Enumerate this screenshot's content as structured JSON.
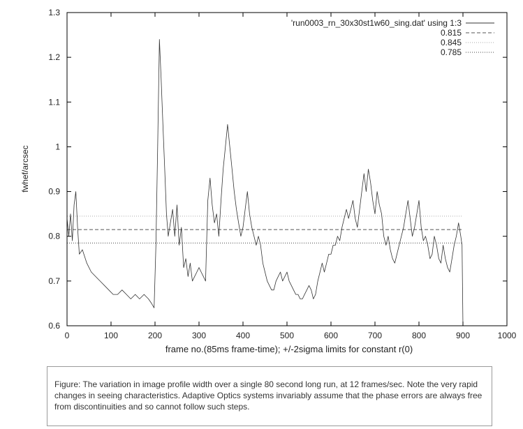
{
  "chart_data": {
    "type": "line",
    "title": "",
    "xlabel": "frame no.(85ms frame-time); +/-2sigma limits for constant r(0)",
    "ylabel": "fwhef/arcsec",
    "xlim": [
      0,
      1000
    ],
    "ylim": [
      0.6,
      1.3
    ],
    "xticks": [
      "0",
      "100",
      "200",
      "300",
      "400",
      "500",
      "600",
      "700",
      "800",
      "900",
      "1000"
    ],
    "yticks": [
      "0.6",
      "0.7",
      "0.8",
      "0.9",
      "1",
      "1.1",
      "1.2",
      "1.3"
    ],
    "grid": false,
    "legend_position": "top-right",
    "series": [
      {
        "name": "'run0003_rn_30x30st1w60_sing.dat' using 1:3",
        "style": "solid",
        "points": [
          [
            0,
            0.84
          ],
          [
            4,
            0.8
          ],
          [
            8,
            0.85
          ],
          [
            12,
            0.79
          ],
          [
            16,
            0.87
          ],
          [
            20,
            0.9
          ],
          [
            24,
            0.82
          ],
          [
            28,
            0.76
          ],
          [
            35,
            0.77
          ],
          [
            45,
            0.74
          ],
          [
            55,
            0.72
          ],
          [
            65,
            0.71
          ],
          [
            75,
            0.7
          ],
          [
            85,
            0.69
          ],
          [
            95,
            0.68
          ],
          [
            105,
            0.67
          ],
          [
            115,
            0.67
          ],
          [
            125,
            0.68
          ],
          [
            135,
            0.67
          ],
          [
            145,
            0.66
          ],
          [
            155,
            0.67
          ],
          [
            165,
            0.66
          ],
          [
            175,
            0.67
          ],
          [
            185,
            0.66
          ],
          [
            192,
            0.65
          ],
          [
            198,
            0.64
          ],
          [
            202,
            0.78
          ],
          [
            206,
            1.0
          ],
          [
            210,
            1.24
          ],
          [
            214,
            1.15
          ],
          [
            218,
            1.05
          ],
          [
            222,
            0.95
          ],
          [
            226,
            0.85
          ],
          [
            230,
            0.8
          ],
          [
            235,
            0.83
          ],
          [
            240,
            0.86
          ],
          [
            245,
            0.8
          ],
          [
            250,
            0.87
          ],
          [
            255,
            0.78
          ],
          [
            260,
            0.82
          ],
          [
            265,
            0.73
          ],
          [
            270,
            0.75
          ],
          [
            275,
            0.71
          ],
          [
            280,
            0.74
          ],
          [
            285,
            0.7
          ],
          [
            290,
            0.71
          ],
          [
            295,
            0.72
          ],
          [
            300,
            0.73
          ],
          [
            305,
            0.72
          ],
          [
            310,
            0.71
          ],
          [
            315,
            0.7
          ],
          [
            320,
            0.88
          ],
          [
            325,
            0.93
          ],
          [
            330,
            0.87
          ],
          [
            335,
            0.83
          ],
          [
            340,
            0.85
          ],
          [
            345,
            0.8
          ],
          [
            350,
            0.88
          ],
          [
            355,
            0.95
          ],
          [
            360,
            1.0
          ],
          [
            365,
            1.05
          ],
          [
            370,
            1.0
          ],
          [
            375,
            0.95
          ],
          [
            380,
            0.9
          ],
          [
            385,
            0.86
          ],
          [
            390,
            0.83
          ],
          [
            395,
            0.8
          ],
          [
            400,
            0.82
          ],
          [
            405,
            0.86
          ],
          [
            410,
            0.9
          ],
          [
            415,
            0.85
          ],
          [
            420,
            0.82
          ],
          [
            425,
            0.8
          ],
          [
            430,
            0.78
          ],
          [
            435,
            0.8
          ],
          [
            440,
            0.78
          ],
          [
            445,
            0.74
          ],
          [
            450,
            0.72
          ],
          [
            455,
            0.7
          ],
          [
            460,
            0.69
          ],
          [
            465,
            0.68
          ],
          [
            470,
            0.68
          ],
          [
            475,
            0.7
          ],
          [
            480,
            0.71
          ],
          [
            485,
            0.72
          ],
          [
            490,
            0.7
          ],
          [
            495,
            0.71
          ],
          [
            500,
            0.72
          ],
          [
            505,
            0.7
          ],
          [
            510,
            0.69
          ],
          [
            515,
            0.68
          ],
          [
            520,
            0.67
          ],
          [
            525,
            0.67
          ],
          [
            530,
            0.66
          ],
          [
            535,
            0.66
          ],
          [
            540,
            0.67
          ],
          [
            545,
            0.68
          ],
          [
            550,
            0.69
          ],
          [
            555,
            0.68
          ],
          [
            560,
            0.66
          ],
          [
            565,
            0.67
          ],
          [
            570,
            0.7
          ],
          [
            575,
            0.72
          ],
          [
            580,
            0.74
          ],
          [
            585,
            0.72
          ],
          [
            590,
            0.74
          ],
          [
            595,
            0.76
          ],
          [
            600,
            0.76
          ],
          [
            605,
            0.78
          ],
          [
            610,
            0.78
          ],
          [
            615,
            0.8
          ],
          [
            620,
            0.79
          ],
          [
            625,
            0.82
          ],
          [
            630,
            0.84
          ],
          [
            635,
            0.86
          ],
          [
            640,
            0.84
          ],
          [
            645,
            0.86
          ],
          [
            650,
            0.88
          ],
          [
            655,
            0.84
          ],
          [
            660,
            0.82
          ],
          [
            665,
            0.86
          ],
          [
            670,
            0.9
          ],
          [
            675,
            0.94
          ],
          [
            680,
            0.9
          ],
          [
            685,
            0.95
          ],
          [
            690,
            0.92
          ],
          [
            695,
            0.88
          ],
          [
            700,
            0.85
          ],
          [
            705,
            0.9
          ],
          [
            710,
            0.87
          ],
          [
            715,
            0.85
          ],
          [
            720,
            0.8
          ],
          [
            725,
            0.78
          ],
          [
            730,
            0.8
          ],
          [
            735,
            0.77
          ],
          [
            740,
            0.75
          ],
          [
            745,
            0.74
          ],
          [
            750,
            0.76
          ],
          [
            755,
            0.78
          ],
          [
            760,
            0.8
          ],
          [
            765,
            0.82
          ],
          [
            770,
            0.85
          ],
          [
            775,
            0.88
          ],
          [
            780,
            0.84
          ],
          [
            785,
            0.8
          ],
          [
            790,
            0.82
          ],
          [
            795,
            0.85
          ],
          [
            800,
            0.88
          ],
          [
            805,
            0.82
          ],
          [
            810,
            0.79
          ],
          [
            815,
            0.8
          ],
          [
            820,
            0.78
          ],
          [
            825,
            0.75
          ],
          [
            830,
            0.76
          ],
          [
            835,
            0.8
          ],
          [
            840,
            0.78
          ],
          [
            845,
            0.75
          ],
          [
            850,
            0.74
          ],
          [
            855,
            0.78
          ],
          [
            860,
            0.75
          ],
          [
            865,
            0.73
          ],
          [
            870,
            0.72
          ],
          [
            875,
            0.75
          ],
          [
            880,
            0.78
          ],
          [
            885,
            0.8
          ],
          [
            890,
            0.83
          ],
          [
            895,
            0.8
          ],
          [
            898,
            0.78
          ],
          [
            900,
            0.6
          ]
        ]
      },
      {
        "name": "0.815",
        "style": "dashed",
        "value": 0.815
      },
      {
        "name": "0.845",
        "style": "dotted-light",
        "value": 0.845
      },
      {
        "name": "0.785",
        "style": "dotted",
        "value": 0.785
      }
    ]
  },
  "caption": {
    "text": "Figure: The variation in image profile width over a single 80 second long run, at 12 frames/sec.  Note the very rapid changes in seeing characteristics.  Adaptive Optics systems invariably assume that the phase errors are always free from discontinuities and so cannot follow such steps."
  },
  "colors": {
    "data_line": "#333333",
    "axis": "#000000"
  }
}
